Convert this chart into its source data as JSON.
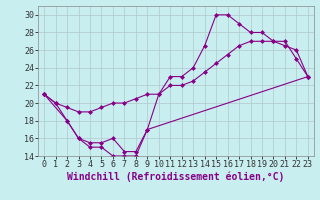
{
  "xlabel": "Windchill (Refroidissement éolien,°C)",
  "background_color": "#c8eef0",
  "line_color": "#880088",
  "xlim": [
    -0.5,
    23.5
  ],
  "ylim": [
    14,
    31
  ],
  "yticks": [
    14,
    16,
    18,
    20,
    22,
    24,
    26,
    28,
    30
  ],
  "xticks": [
    0,
    1,
    2,
    3,
    4,
    5,
    6,
    7,
    8,
    9,
    10,
    11,
    12,
    13,
    14,
    15,
    16,
    17,
    18,
    19,
    20,
    21,
    22,
    23
  ],
  "line1_x": [
    0,
    1,
    2,
    3,
    4,
    5,
    6,
    7,
    8,
    9,
    10,
    11,
    12,
    13,
    14,
    15,
    16,
    17,
    18,
    19,
    20,
    21,
    22,
    23
  ],
  "line1_y": [
    21,
    20,
    18,
    16,
    15,
    15,
    14,
    14,
    14,
    17,
    21,
    23,
    23,
    24,
    26.5,
    30,
    30,
    29,
    28,
    28,
    27,
    27,
    25,
    23
  ],
  "line2_x": [
    0,
    1,
    2,
    3,
    4,
    5,
    6,
    7,
    8,
    9,
    10,
    11,
    12,
    13,
    14,
    15,
    16,
    17,
    18,
    19,
    20,
    21,
    22,
    23
  ],
  "line2_y": [
    21,
    20,
    19.5,
    19,
    19,
    19.5,
    20,
    20,
    20.5,
    21,
    21,
    22,
    22,
    22.5,
    23.5,
    24.5,
    25.5,
    26.5,
    27,
    27,
    27,
    26.5,
    26,
    23
  ],
  "line3_x": [
    0,
    2,
    3,
    4,
    5,
    6,
    7,
    8,
    9,
    23
  ],
  "line3_y": [
    21,
    18,
    16,
    15.5,
    15.5,
    16,
    14.5,
    14.5,
    17,
    23
  ],
  "grid_color": "#b0c8cc",
  "tick_fontsize": 6,
  "xlabel_fontsize": 7,
  "markersize": 2.5
}
